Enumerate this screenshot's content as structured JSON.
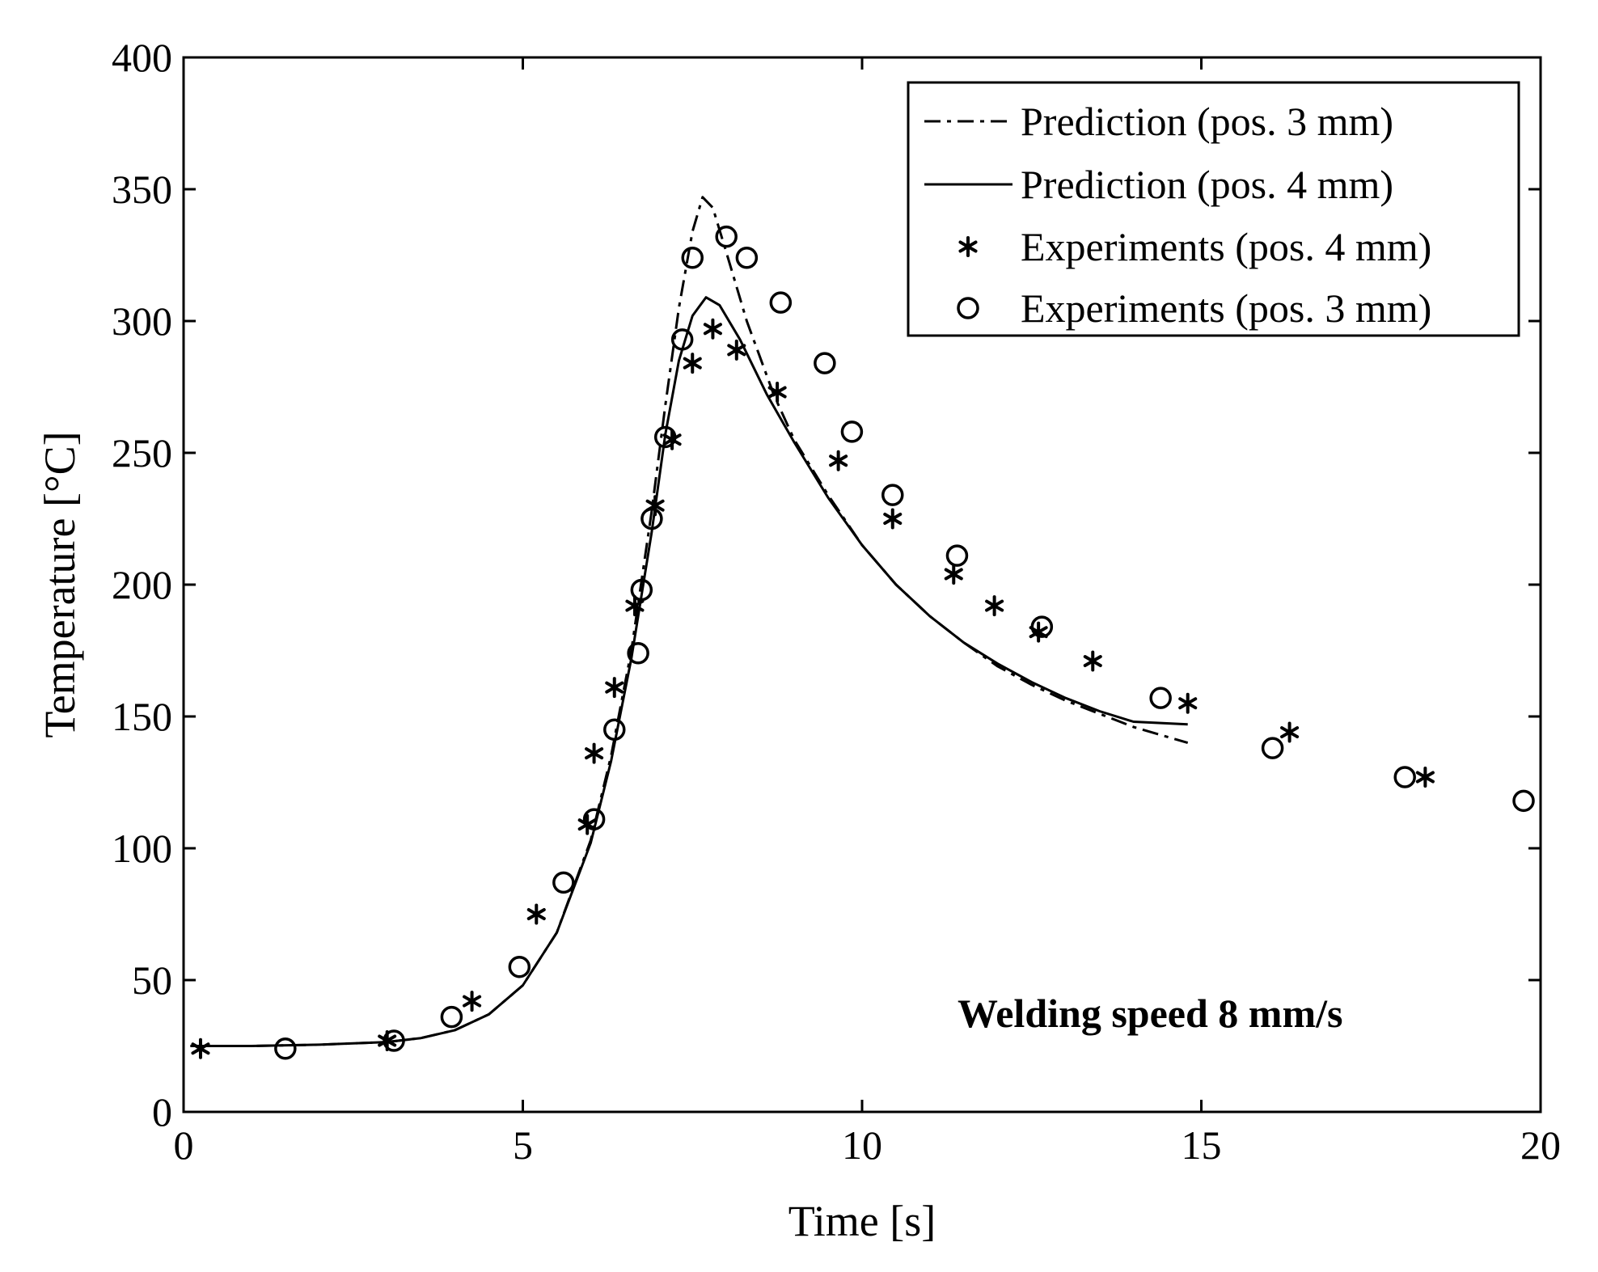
{
  "chart_data": {
    "type": "scatter",
    "title": "",
    "xlabel": "Time [s]",
    "ylabel": "Temperature [°C]",
    "xlim": [
      0,
      20
    ],
    "ylim": [
      0,
      400
    ],
    "xticks": [
      0,
      5,
      10,
      15,
      20
    ],
    "yticks": [
      0,
      50,
      100,
      150,
      200,
      250,
      300,
      350,
      400
    ],
    "grid": false,
    "legend_position": "top-right",
    "annotation": "Welding speed 8 mm/s",
    "series": [
      {
        "name": "Prediction (pos. 3 mm)",
        "kind": "line",
        "style": "dash-dot",
        "points": [
          [
            0.1,
            25
          ],
          [
            1,
            25
          ],
          [
            2,
            25.5
          ],
          [
            3,
            26.5
          ],
          [
            3.5,
            28
          ],
          [
            4,
            31
          ],
          [
            4.5,
            37
          ],
          [
            5,
            48
          ],
          [
            5.5,
            68
          ],
          [
            6,
            103
          ],
          [
            6.3,
            135
          ],
          [
            6.6,
            175
          ],
          [
            6.9,
            228
          ],
          [
            7.1,
            268
          ],
          [
            7.3,
            305
          ],
          [
            7.5,
            334
          ],
          [
            7.65,
            347
          ],
          [
            7.8,
            343
          ],
          [
            8,
            326
          ],
          [
            8.3,
            300
          ],
          [
            8.7,
            272
          ],
          [
            9,
            255
          ],
          [
            9.5,
            234
          ],
          [
            10,
            215
          ],
          [
            10.5,
            200
          ],
          [
            11,
            188
          ],
          [
            11.5,
            178
          ],
          [
            12,
            169
          ],
          [
            12.5,
            162
          ],
          [
            13,
            156
          ],
          [
            13.5,
            151
          ],
          [
            14,
            146
          ],
          [
            14.8,
            140
          ]
        ]
      },
      {
        "name": "Prediction (pos. 4 mm)",
        "kind": "line",
        "style": "solid",
        "points": [
          [
            0.1,
            25
          ],
          [
            1,
            25
          ],
          [
            2,
            25.5
          ],
          [
            3,
            26.5
          ],
          [
            3.5,
            28
          ],
          [
            4,
            31
          ],
          [
            4.5,
            37
          ],
          [
            5,
            48
          ],
          [
            5.5,
            68
          ],
          [
            6,
            102
          ],
          [
            6.3,
            133
          ],
          [
            6.6,
            172
          ],
          [
            6.9,
            220
          ],
          [
            7.1,
            257
          ],
          [
            7.3,
            285
          ],
          [
            7.5,
            302
          ],
          [
            7.7,
            309
          ],
          [
            7.9,
            306
          ],
          [
            8.2,
            293
          ],
          [
            8.6,
            272
          ],
          [
            9,
            254
          ],
          [
            9.5,
            233
          ],
          [
            10,
            215
          ],
          [
            10.5,
            200
          ],
          [
            11,
            188
          ],
          [
            11.5,
            178
          ],
          [
            12,
            170
          ],
          [
            12.5,
            163
          ],
          [
            13,
            157
          ],
          [
            13.5,
            152
          ],
          [
            14,
            148
          ],
          [
            14.8,
            147
          ]
        ]
      },
      {
        "name": "Experiments (pos. 4 mm)",
        "kind": "scatter",
        "marker": "asterisk",
        "points": [
          [
            0.25,
            24
          ],
          [
            3,
            27
          ],
          [
            4.25,
            42
          ],
          [
            5.2,
            75
          ],
          [
            5.95,
            109
          ],
          [
            6.05,
            136
          ],
          [
            6.35,
            161
          ],
          [
            6.65,
            192
          ],
          [
            6.95,
            230
          ],
          [
            7.2,
            255
          ],
          [
            7.5,
            284
          ],
          [
            7.8,
            297
          ],
          [
            8.15,
            289
          ],
          [
            8.75,
            273
          ],
          [
            9.65,
            247
          ],
          [
            10.45,
            225
          ],
          [
            11.35,
            204
          ],
          [
            11.95,
            192
          ],
          [
            12.6,
            182
          ],
          [
            13.4,
            171
          ],
          [
            14.8,
            155
          ],
          [
            16.3,
            144
          ],
          [
            18.3,
            127
          ]
        ]
      },
      {
        "name": "Experiments (pos. 3 mm)",
        "kind": "scatter",
        "marker": "circle",
        "points": [
          [
            1.5,
            24
          ],
          [
            3.1,
            27
          ],
          [
            3.95,
            36
          ],
          [
            4.95,
            55
          ],
          [
            5.6,
            87
          ],
          [
            6.05,
            111
          ],
          [
            6.35,
            145
          ],
          [
            6.7,
            174
          ],
          [
            6.75,
            198
          ],
          [
            6.9,
            225
          ],
          [
            7.1,
            256
          ],
          [
            7.35,
            293
          ],
          [
            7.5,
            324
          ],
          [
            8,
            332
          ],
          [
            8.3,
            324
          ],
          [
            8.8,
            307
          ],
          [
            9.45,
            284
          ],
          [
            9.85,
            258
          ],
          [
            10.45,
            234
          ],
          [
            11.4,
            211
          ],
          [
            12.65,
            184
          ],
          [
            14.4,
            157
          ],
          [
            16.05,
            138
          ],
          [
            18,
            127
          ],
          [
            19.75,
            118
          ]
        ]
      }
    ]
  }
}
